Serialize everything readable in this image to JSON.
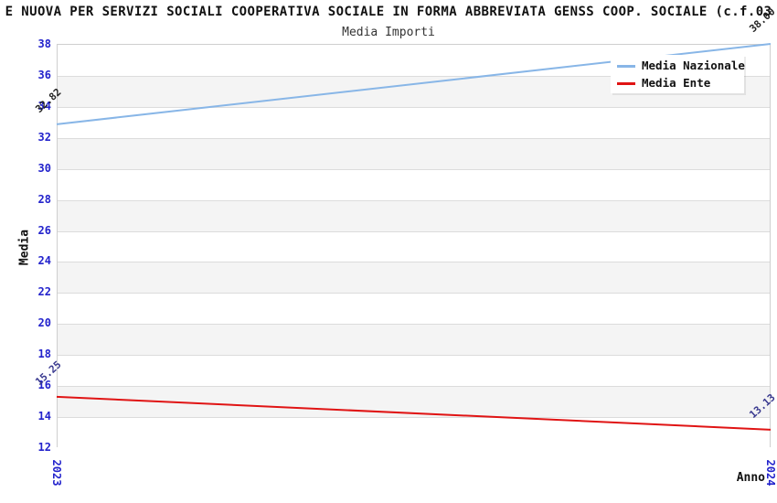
{
  "title": "E NUOVA PER SERVIZI SOCIALI COOPERATIVA SOCIALE IN FORMA ABBREVIATA GENSS COOP. SOCIALE (c.f.03",
  "subtitle": "Media Importi",
  "chart_data": {
    "type": "line",
    "x_labels": [
      "2023",
      "2024"
    ],
    "series": [
      {
        "name": "Media Nazionale",
        "values": [
          32.82,
          38.0
        ],
        "point_labels": [
          "32.82",
          "38.00"
        ],
        "color": "#88b6e7",
        "label_color": "#222222"
      },
      {
        "name": "Media Ente",
        "values": [
          15.25,
          13.13
        ],
        "point_labels": [
          "15.25",
          "13.13"
        ],
        "color": "#e01414",
        "label_color": "#39398f"
      }
    ],
    "xlabel": "Anno",
    "ylabel": "Media",
    "ylim": [
      12,
      38
    ],
    "ytick_step": 2,
    "yticks": [
      38,
      36,
      34,
      32,
      30,
      28,
      26,
      24,
      22,
      20,
      18,
      16,
      14,
      12
    ],
    "grid": true,
    "band_colors": [
      "#ffffff",
      "#f4f4f4"
    ],
    "gridline_color": "#dcdcdc",
    "frame_color": "#cfcfcf",
    "tick_color": "#2323cc",
    "legend_position": "top-right",
    "legend_entries": [
      {
        "label": "Media Nazionale",
        "color": "#88b6e7"
      },
      {
        "label": "Media Ente",
        "color": "#e01414"
      }
    ]
  }
}
